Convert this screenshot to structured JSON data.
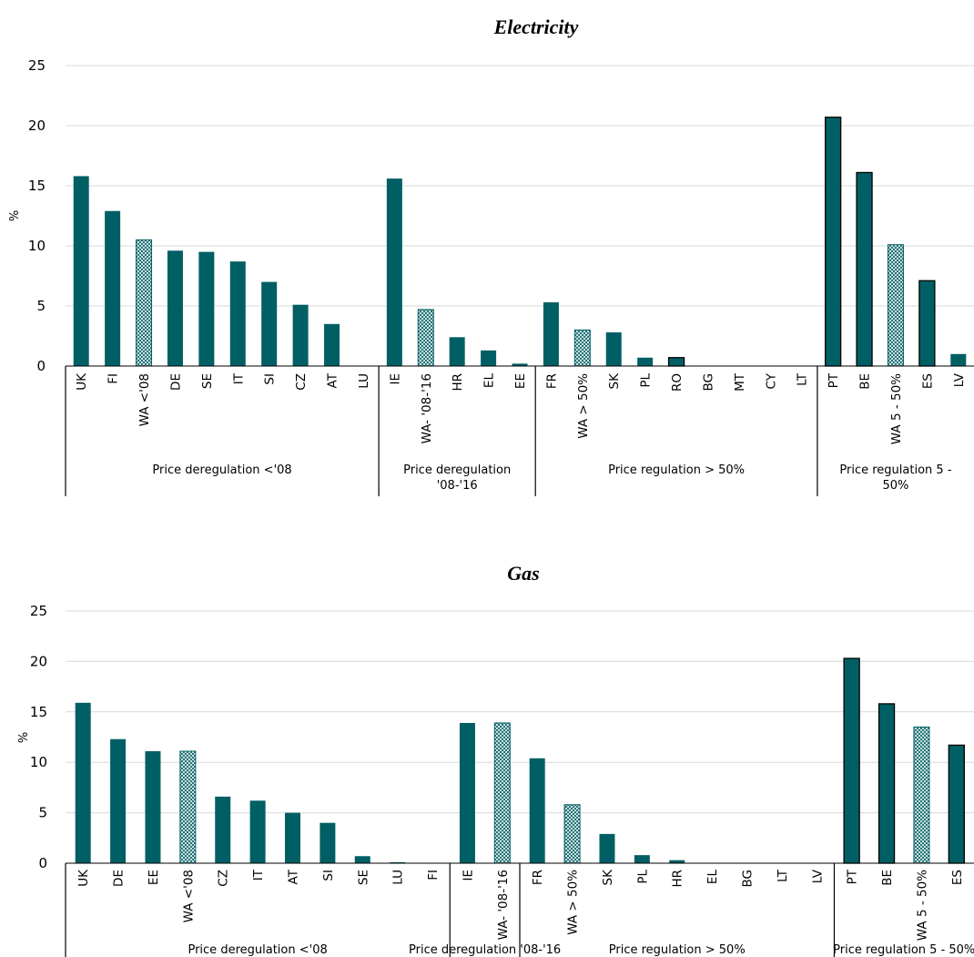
{
  "colors": {
    "bar": "#005F64",
    "hatch": "#005F64",
    "grid": "#D9D9D9",
    "axis": "#000000"
  },
  "chart_data": [
    {
      "type": "bar",
      "title": "Electricity",
      "ylabel": "%",
      "ylim": [
        0,
        25
      ],
      "yticks": [
        0,
        5,
        10,
        15,
        20,
        25
      ],
      "grid": true,
      "categories": [
        "UK",
        "FI",
        "WA <'08",
        "DE",
        "SE",
        "IT",
        "SI",
        "CZ",
        "AT",
        "LU",
        "IE",
        "WA- '08-'16",
        "HR",
        "EL",
        "EE",
        "FR",
        "WA > 50%",
        "SK",
        "PL",
        "RO",
        "BG",
        "MT",
        "CY",
        "LT",
        "PT",
        "BE",
        "WA 5 - 50%",
        "ES",
        "LV"
      ],
      "values": [
        15.8,
        12.9,
        10.5,
        9.6,
        9.5,
        8.7,
        7.0,
        5.1,
        3.5,
        0,
        15.6,
        4.7,
        2.4,
        1.3,
        0.2,
        5.3,
        3.0,
        2.8,
        0.7,
        0.7,
        0,
        0,
        0,
        0,
        20.7,
        16.1,
        10.1,
        7.1,
        1.0
      ],
      "weighted_average": [
        false,
        false,
        true,
        false,
        false,
        false,
        false,
        false,
        false,
        false,
        false,
        true,
        false,
        false,
        false,
        false,
        true,
        false,
        false,
        false,
        false,
        false,
        false,
        false,
        false,
        false,
        true,
        false,
        false
      ],
      "outlined": [
        false,
        false,
        false,
        false,
        false,
        false,
        false,
        false,
        false,
        false,
        false,
        false,
        false,
        false,
        false,
        false,
        false,
        false,
        false,
        true,
        false,
        false,
        false,
        false,
        true,
        true,
        false,
        true,
        false
      ],
      "groups": [
        {
          "label": "Price deregulation <'08",
          "start": 0,
          "end": 9
        },
        {
          "label": "Price deregulation '08-'16",
          "start": 10,
          "end": 14
        },
        {
          "label": "Price regulation > 50%",
          "start": 15,
          "end": 23
        },
        {
          "label": "Price regulation 5 - 50%",
          "start": 24,
          "end": 28
        }
      ]
    },
    {
      "type": "bar",
      "title": "Gas",
      "ylabel": "%",
      "ylim": [
        0,
        25
      ],
      "yticks": [
        0,
        5,
        10,
        15,
        20,
        25
      ],
      "grid": true,
      "categories": [
        "UK",
        "DE",
        "EE",
        "WA <'08",
        "CZ",
        "IT",
        "AT",
        "SI",
        "SE",
        "LU",
        "FI",
        "IE",
        "WA- '08-'16",
        "FR",
        "WA > 50%",
        "SK",
        "PL",
        "HR",
        "EL",
        "BG",
        "LT",
        "LV",
        "PT",
        "BE",
        "WA 5 - 50%",
        "ES"
      ],
      "values": [
        15.9,
        12.3,
        11.1,
        11.1,
        6.6,
        6.2,
        5.0,
        4.0,
        0.7,
        0.1,
        0,
        13.9,
        13.9,
        10.4,
        5.8,
        2.9,
        0.8,
        0.3,
        0,
        0,
        0,
        0,
        20.3,
        15.8,
        13.5,
        11.7
      ],
      "weighted_average": [
        false,
        false,
        false,
        true,
        false,
        false,
        false,
        false,
        false,
        false,
        false,
        false,
        true,
        false,
        true,
        false,
        false,
        false,
        false,
        false,
        false,
        false,
        false,
        false,
        true,
        false
      ],
      "outlined": [
        false,
        false,
        false,
        false,
        false,
        false,
        false,
        false,
        false,
        false,
        false,
        false,
        false,
        false,
        false,
        false,
        false,
        false,
        false,
        false,
        false,
        false,
        true,
        true,
        false,
        true
      ],
      "groups": [
        {
          "label": "Price deregulation <'08",
          "start": 0,
          "end": 10
        },
        {
          "label": "Price deregulation '08-'16",
          "start": 11,
          "end": 12
        },
        {
          "label": "Price regulation > 50%",
          "start": 13,
          "end": 21
        },
        {
          "label": "Price regulation 5 - 50%",
          "start": 22,
          "end": 25
        }
      ]
    }
  ]
}
